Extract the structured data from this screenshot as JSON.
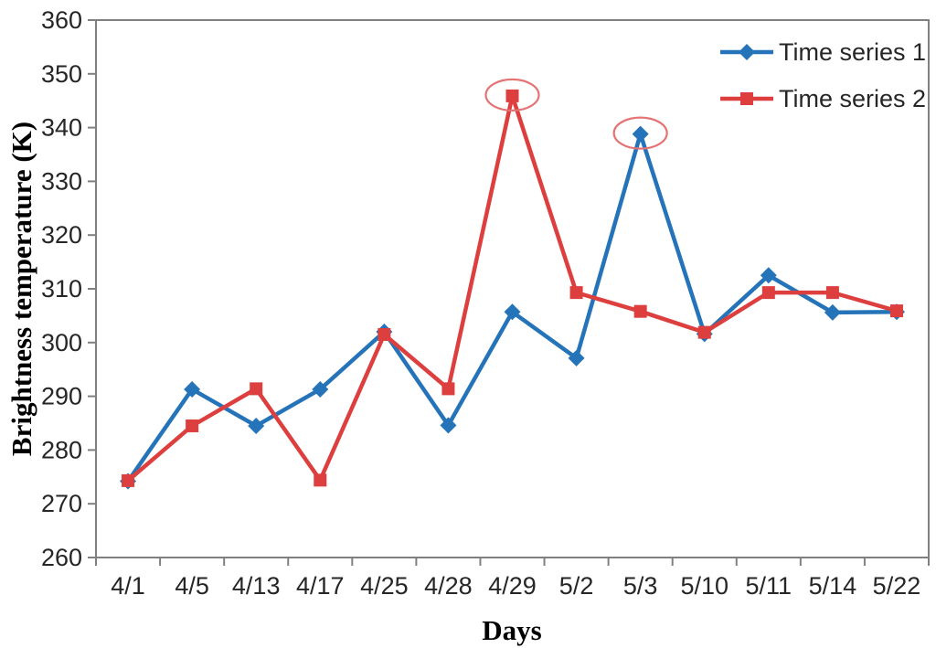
{
  "chart_data": {
    "type": "line",
    "title": "",
    "xlabel": "Days",
    "ylabel": "Brightness temperature (K)",
    "ylim": [
      260,
      360
    ],
    "ytick_step": 10,
    "yticks": [
      260,
      270,
      280,
      290,
      300,
      310,
      320,
      330,
      340,
      350,
      360
    ],
    "grid": false,
    "legend_position": "top-right-inside",
    "categories": [
      "4/1",
      "4/5",
      "4/13",
      "4/17",
      "4/25",
      "4/28",
      "4/29",
      "5/2",
      "5/3",
      "5/10",
      "5/11",
      "5/14",
      "5/22"
    ],
    "series": [
      {
        "name": "Time series 1",
        "color": "#2574B9",
        "marker": "diamond",
        "values": [
          274.2,
          291.3,
          284.5,
          291.3,
          302.0,
          284.6,
          305.7,
          297.1,
          338.8,
          301.6,
          312.5,
          305.6,
          305.7
        ]
      },
      {
        "name": "Time series 2",
        "color": "#DD3E3E",
        "marker": "square",
        "values": [
          274.3,
          284.5,
          291.4,
          274.4,
          301.5,
          291.4,
          345.9,
          309.3,
          305.8,
          301.9,
          309.3,
          309.3,
          305.9
        ]
      }
    ],
    "annotations": [
      {
        "type": "ellipse",
        "series": "Time series 2",
        "category": "4/29",
        "value": 345.9,
        "color": "#E57373"
      },
      {
        "type": "ellipse",
        "series": "Time series 1",
        "category": "5/3",
        "value": 338.8,
        "color": "#E57373"
      }
    ],
    "axis_color": "#808080"
  }
}
